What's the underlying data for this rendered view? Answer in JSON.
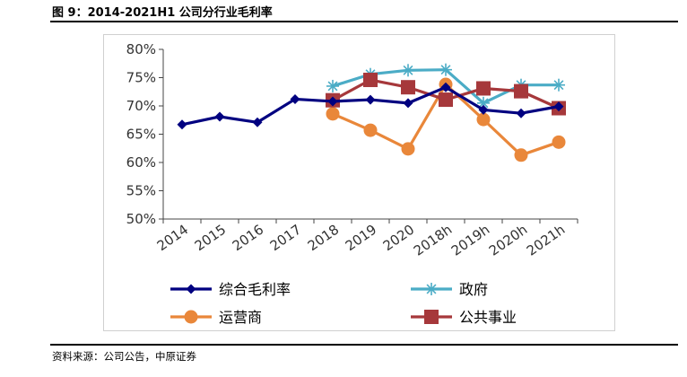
{
  "figure": {
    "title": "图 9：2014-2021H1 公司分行业毛利率",
    "source": "资料来源：公司公告，中原证券"
  },
  "chart_data": {
    "type": "line",
    "categories": [
      "2014",
      "2015",
      "2016",
      "2017",
      "2018",
      "2019",
      "2020",
      "2018h",
      "2019h",
      "2020h",
      "2021h"
    ],
    "y_ticks": [
      "50%",
      "55%",
      "60%",
      "65%",
      "70%",
      "75%",
      "80%"
    ],
    "ylim": [
      50,
      80
    ],
    "unit": "%",
    "legend_position": "bottom",
    "series": [
      {
        "name": "综合毛利率",
        "color": "#000080",
        "marker": "diamond",
        "values": [
          66.7,
          68.1,
          67.1,
          71.2,
          70.8,
          71.1,
          70.5,
          73.3,
          69.3,
          68.7,
          69.9
        ]
      },
      {
        "name": "政府",
        "color": "#4BACC6",
        "marker": "asterisk",
        "values": [
          null,
          null,
          null,
          null,
          73.5,
          75.6,
          76.3,
          76.4,
          70.5,
          73.7,
          73.7
        ]
      },
      {
        "name": "运营商",
        "color": "#E9873A",
        "marker": "circle",
        "values": [
          null,
          null,
          null,
          null,
          68.6,
          65.7,
          62.4,
          73.8,
          67.6,
          61.3,
          63.6
        ]
      },
      {
        "name": "公共事业",
        "color": "#A6383B",
        "marker": "square",
        "values": [
          null,
          null,
          null,
          null,
          71.0,
          74.6,
          73.3,
          71.1,
          73.1,
          72.6,
          69.6
        ]
      }
    ]
  }
}
